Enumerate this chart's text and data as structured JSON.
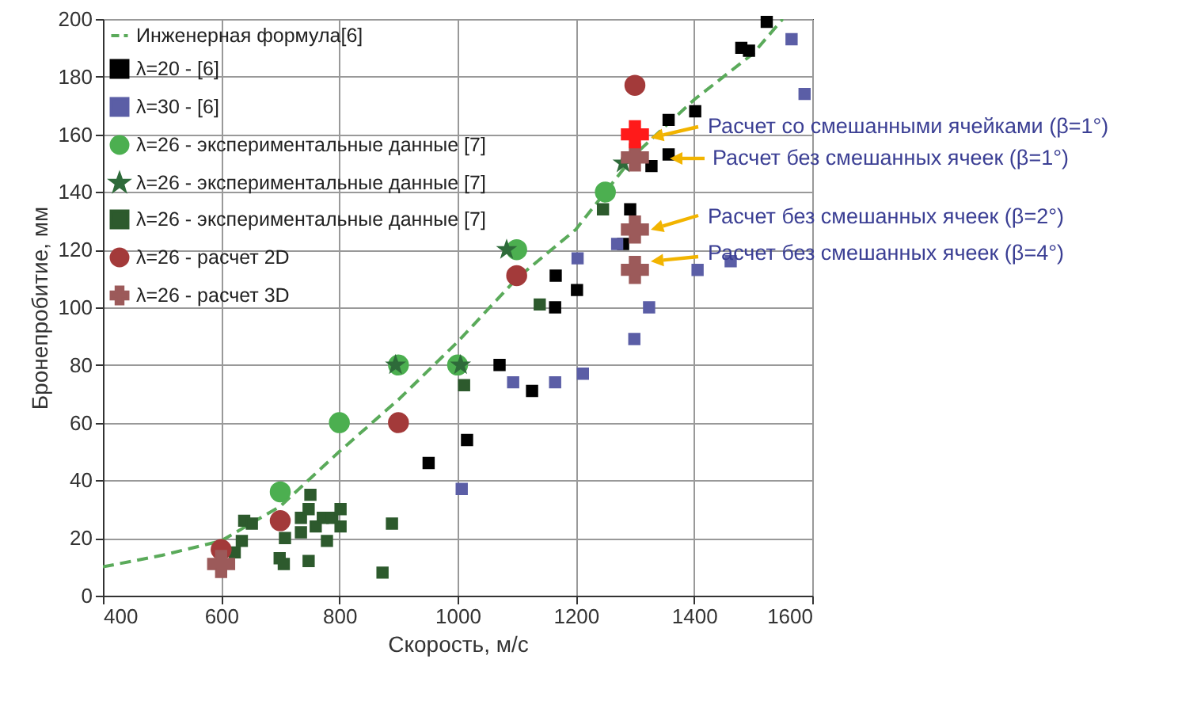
{
  "chart_data": {
    "type": "scatter",
    "xlabel": "Скорость, м/с",
    "ylabel": "Бронепробитие, мм",
    "xlim": [
      400,
      1600
    ],
    "ylim": [
      0,
      200
    ],
    "xticks": [
      400,
      600,
      800,
      1000,
      1200,
      1400,
      1600
    ],
    "yticks": [
      0,
      20,
      40,
      60,
      80,
      100,
      120,
      140,
      160,
      180,
      200
    ],
    "grid": true,
    "legend": "top left",
    "series": [
      {
        "name": "Инженерная формула[6]",
        "type": "line",
        "line_style": "dashed",
        "marker": "none",
        "color": "#5aaa5a",
        "x": [
          400,
          500,
          600,
          700,
          800,
          900,
          1000,
          1100,
          1200,
          1250,
          1300,
          1400,
          1500,
          1550
        ],
        "values": [
          10,
          14,
          19,
          31,
          50,
          68,
          88,
          110,
          127,
          140,
          153,
          172,
          188,
          200
        ]
      },
      {
        "name": "λ=20 - [6]",
        "marker": "square",
        "color": "#000000",
        "x": [
          951,
          1016,
          1071,
          1126,
          1165,
          1166,
          1202,
          1280,
          1292,
          1328,
          1357,
          1357,
          1402,
          1480,
          1493,
          1523
        ],
        "values": [
          46,
          54,
          80,
          71,
          100,
          111,
          106,
          122,
          134,
          149,
          153,
          165,
          168,
          190,
          189,
          199
        ]
      },
      {
        "name": "λ=30 - [6]",
        "marker": "square",
        "color": "#5b5ea6",
        "x": [
          1007,
          1094,
          1165,
          1203,
          1212,
          1270,
          1299,
          1324,
          1406,
          1462,
          1565,
          1587
        ],
        "values": [
          37,
          74,
          74,
          117,
          77,
          122,
          89,
          100,
          113,
          116,
          193,
          174
        ]
      },
      {
        "name": "λ=26 - экспериментальные данные [7]",
        "marker": "circle",
        "color": "#4caf50",
        "x": [
          700,
          800,
          900,
          1000,
          1100,
          1250
        ],
        "values": [
          36,
          60,
          80,
          80,
          120,
          140
        ]
      },
      {
        "name": "λ=26 - экспериментальные данные [7] ",
        "marker": "star",
        "color": "#2e6b3a",
        "x": [
          895,
          1005,
          1083,
          1280
        ],
        "values": [
          80,
          80,
          120,
          150
        ]
      },
      {
        "name": "λ=26 - экспериментальные данные [7]  ",
        "marker": "square",
        "color": "#2d5a2d",
        "x": [
          623,
          635,
          639,
          652,
          699,
          706,
          708,
          735,
          735,
          748,
          751,
          748,
          760,
          772,
          779,
          788,
          802,
          802,
          873,
          889,
          1011,
          1139,
          1246
        ],
        "values": [
          15,
          19,
          26,
          25,
          13,
          11,
          20,
          27,
          22,
          30,
          35,
          12,
          24,
          27,
          19,
          27,
          30,
          24,
          8,
          25,
          73,
          101,
          134
        ]
      },
      {
        "name": "λ=26 - расчет 2D",
        "marker": "circle",
        "color": "#a33a3a",
        "x": [
          600,
          700,
          900,
          1100,
          1300
        ],
        "values": [
          16,
          26,
          60,
          111,
          177
        ]
      },
      {
        "name": "λ=26 - расчет 3D",
        "marker": "cross",
        "color": "#9c5a5a",
        "x": [
          600,
          1300,
          1300,
          1300
        ],
        "values": [
          11,
          152,
          127,
          113
        ]
      },
      {
        "marker": "cross",
        "color": "#ff1a1a",
        "x": [
          1300
        ],
        "values": [
          160
        ]
      }
    ],
    "annotations": [
      "Расчет со смешанными ячейками (β=1°)",
      "Расчет без смешанных ячеек (β=1°)",
      "Расчет без смешанных ячеек (β=2°)",
      "Расчет без смешанных ячеек (β=4°)"
    ]
  }
}
